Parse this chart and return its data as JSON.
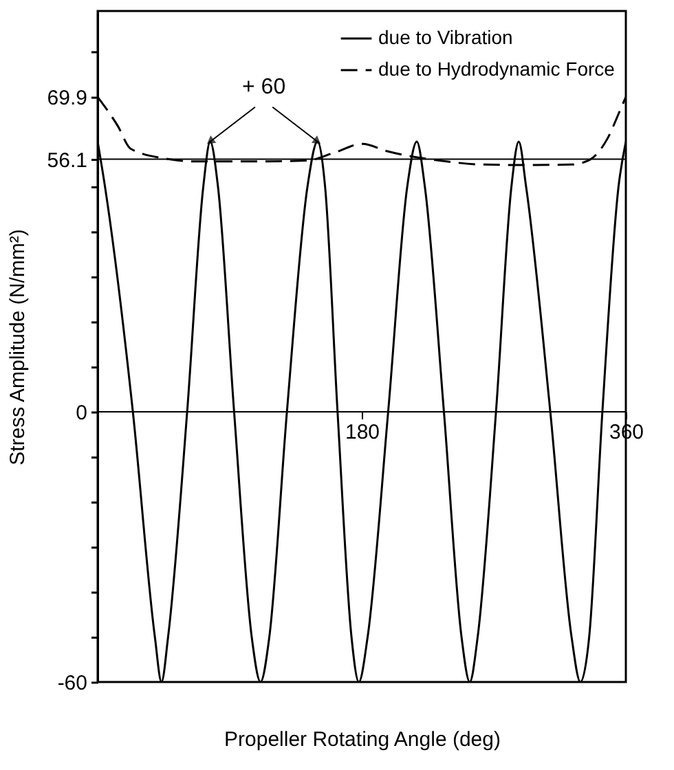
{
  "chart_data": {
    "type": "line",
    "xlabel": "Propeller Rotating Angle (deg)",
    "ylabel": "Stress Amplitude (N/mm²)",
    "xlim": [
      0,
      360
    ],
    "xticks": [
      180,
      360
    ],
    "ylim": [
      -60,
      89
    ],
    "yticks": [
      -60,
      {
        "value": -50,
        "label": null
      },
      {
        "value": -40,
        "label": null
      },
      {
        "value": -30,
        "label": null
      },
      {
        "value": -20,
        "label": null
      },
      {
        "value": -10,
        "label": null
      },
      0,
      {
        "value": 10,
        "label": null
      },
      {
        "value": 20,
        "label": null
      },
      {
        "value": 30,
        "label": null
      },
      {
        "value": 40,
        "label": null
      },
      {
        "value": 50,
        "label": null
      },
      56.1,
      69.9,
      {
        "value": 80,
        "label": null
      }
    ],
    "series": [
      {
        "name": "due to Vibration",
        "color": "#000000",
        "line_style": "solid",
        "x": [
          0,
          5,
          24,
          39,
          43.5,
          48,
          61,
          72,
          76.7,
          82,
          93,
          105,
          111,
          117,
          129,
          143,
          149.8,
          155,
          163.5,
          173,
          178,
          184,
          198,
          211,
          217.5,
          223,
          236,
          248,
          253.6,
          259,
          271.5,
          282,
          287,
          292,
          308.5,
          323,
          329,
          335,
          344,
          355,
          360
        ],
        "values": [
          60,
          50,
          0,
          -50,
          -60,
          -50,
          0,
          50,
          60,
          50,
          0,
          -50,
          -60,
          -50,
          0,
          50,
          60,
          50,
          0,
          -50,
          -60,
          -50,
          0,
          50,
          60,
          50,
          0,
          -50,
          -60,
          -50,
          0,
          50,
          60,
          50,
          0,
          -50,
          -60,
          -50,
          0,
          50,
          60
        ]
      },
      {
        "name": "due to Hydrodynamic Force",
        "color": "#000000",
        "line_style": "dashed",
        "x": [
          0,
          13.5,
          22.6,
          46.6,
          67.7,
          113,
          142.6,
          160.9,
          180.5,
          197,
          233,
          263,
          293,
          323,
          335.6,
          347.5,
          356.5,
          360
        ],
        "values": [
          69.9,
          63.6,
          58.4,
          56.2,
          55.6,
          55.6,
          55.8,
          57.5,
          59.5,
          57.9,
          55.8,
          54.9,
          54.8,
          54.9,
          56,
          60.7,
          67.3,
          69.9
        ]
      }
    ],
    "ref_lines": [
      {
        "axis": "y",
        "value": 56.1,
        "color": "#000000",
        "line_style": "solid"
      },
      {
        "axis": "y",
        "value": 0,
        "color": "#000000",
        "line_style": "solid"
      }
    ],
    "annotations": [
      {
        "text": "+ 60",
        "x": 76.7,
        "y": 60
      }
    ],
    "grid": false,
    "legend": "top right"
  }
}
